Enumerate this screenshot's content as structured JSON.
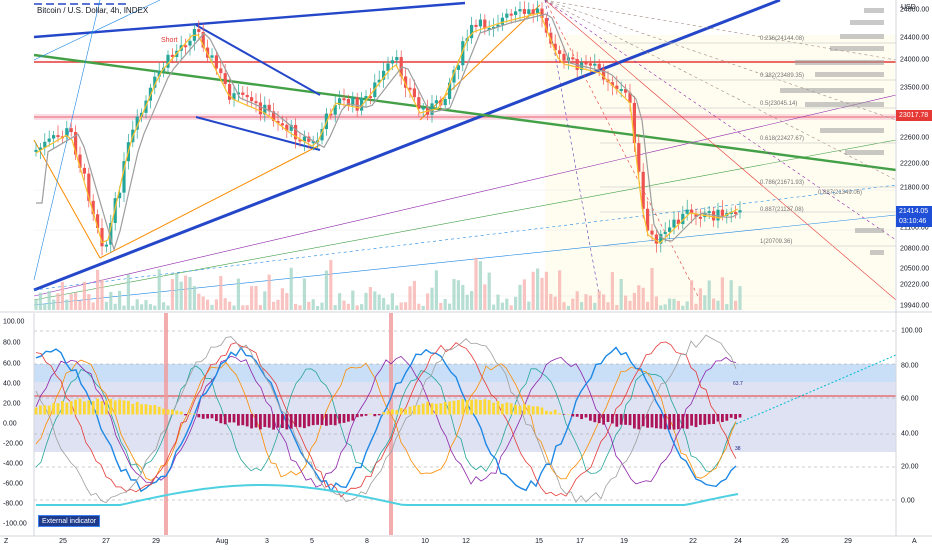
{
  "title": "Bitcoin / U.S. Dollar, 4h, INDEX",
  "short_label": "Short",
  "currency": "USD",
  "price_axis": [
    "24800.00",
    "24400.00",
    "24000.00",
    "23500.00",
    "22600.00",
    "22200.00",
    "21800.00",
    "21100.00",
    "20800.00",
    "20500.00",
    "20220.00",
    "19940.00"
  ],
  "price_tags": {
    "red": "23017.78",
    "current": "21414.05",
    "countdown": "03:10:46"
  },
  "fib_labels": [
    "0.236(24144.08)",
    "0.382(23489.35)",
    "0.5(23045.14)",
    "0.618(22427.67)",
    "0.786(21671.93)",
    "0.887(21349.06)",
    "0.887(21137.08)",
    "1(20709.36)"
  ],
  "osc_left_axis": [
    "100.00",
    "80.00",
    "60.00",
    "40.00",
    "20.00",
    "0.00",
    "-20.00",
    "-40.00",
    "-60.00",
    "-80.00",
    "-100.00"
  ],
  "osc_right_axis": [
    "100.00",
    "80.00",
    "60.00",
    "40.00",
    "20.00",
    "0.00"
  ],
  "osc_small_labels": [
    "63.7",
    "38"
  ],
  "time_axis": [
    "25",
    "27",
    "29",
    "Aug",
    "3",
    "5",
    "8",
    "10",
    "12",
    "15",
    "17",
    "19",
    "22",
    "24",
    "26",
    "29"
  ],
  "external_indicator_label": "External indicator",
  "corner_left": "Z",
  "corner_right": "A",
  "colors": {
    "up": "#26a69a",
    "down": "#ef5350",
    "red_line": "#e53935",
    "blue_line": "#2447c9",
    "green_line": "#43a047",
    "current_tag": "#1f4fd6",
    "red_tag": "#e53935"
  }
}
